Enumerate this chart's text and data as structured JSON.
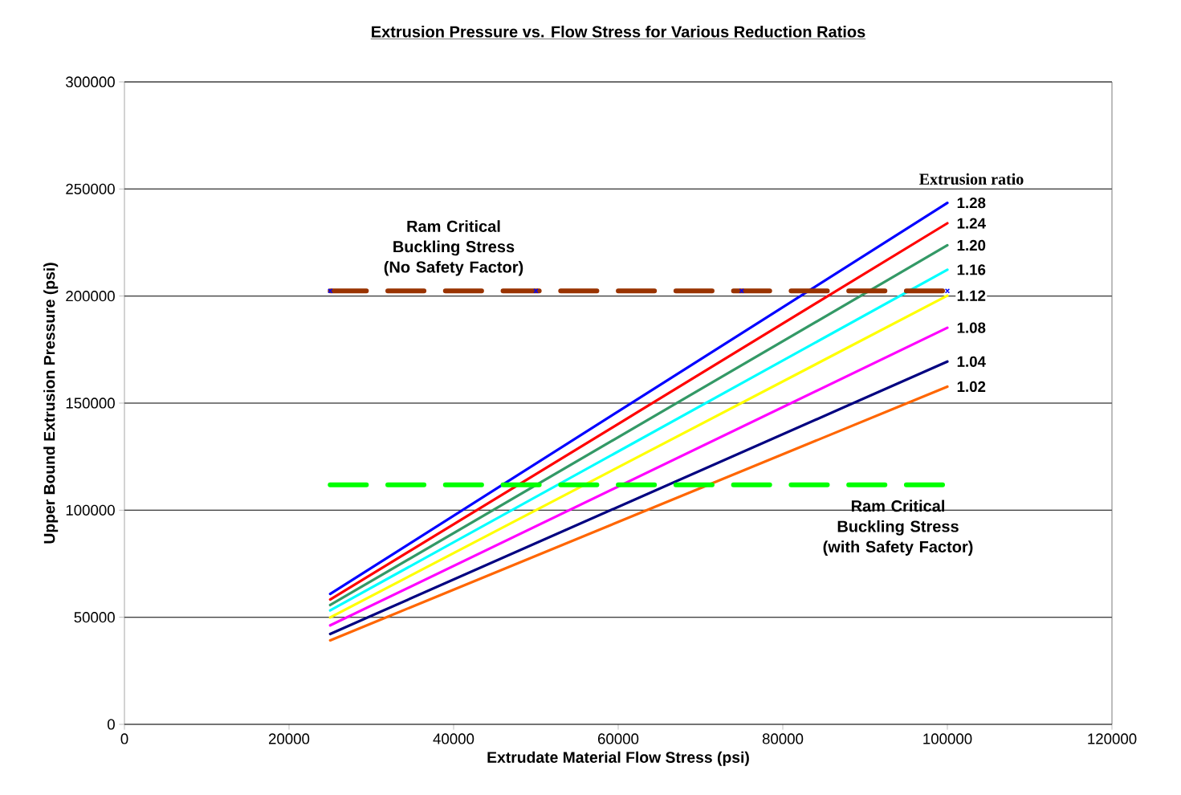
{
  "chart_data": {
    "type": "line",
    "title": "Extrusion Pressure vs. Flow Stress for Various Reduction Ratios",
    "xlabel": "Extrudate Material Flow Stress (psi)",
    "ylabel": "Upper Bound Extrusion Pressure (psi)",
    "legend_title": "Extrusion ratio",
    "xlim": [
      0,
      120000
    ],
    "xticks": [
      0,
      20000,
      40000,
      60000,
      80000,
      100000,
      120000
    ],
    "ylim": [
      0,
      300000
    ],
    "yticks": [
      0,
      50000,
      100000,
      150000,
      200000,
      250000,
      300000
    ],
    "grid": "y",
    "marker": "none",
    "line_style": "solid",
    "series": [
      {
        "name": "1.28",
        "color": "#0000ff",
        "x": [
          25000,
          100000
        ],
        "values": [
          60900,
          243500
        ]
      },
      {
        "name": "1.24",
        "color": "#ff0000",
        "x": [
          25000,
          100000
        ],
        "values": [
          58300,
          234000
        ]
      },
      {
        "name": "1.20",
        "color": "#339966",
        "x": [
          25000,
          100000
        ],
        "values": [
          55700,
          223700
        ]
      },
      {
        "name": "1.16",
        "color": "#00ffff",
        "x": [
          25000,
          100000
        ],
        "values": [
          53200,
          212300
        ]
      },
      {
        "name": "1.12",
        "color": "#ffff00",
        "x": [
          25000,
          100000
        ],
        "values": [
          49900,
          200200
        ]
      },
      {
        "name": "1.08",
        "color": "#ff00ff",
        "x": [
          25000,
          100000
        ],
        "values": [
          46200,
          185200
        ]
      },
      {
        "name": "1.04",
        "color": "#000080",
        "x": [
          25000,
          100000
        ],
        "values": [
          42200,
          169400
        ]
      },
      {
        "name": "1.02",
        "color": "#ff6600",
        "x": [
          25000,
          100000
        ],
        "values": [
          39200,
          157700
        ]
      },
      {
        "color": "#993300",
        "x": [
          25000,
          50000,
          75000,
          100000
        ],
        "values": [
          202400,
          202400,
          202400,
          202400
        ],
        "line_style": "dashed",
        "marker": "cross"
      },
      {
        "color": "#00ff00",
        "x": [
          25000,
          100000
        ],
        "values": [
          111800,
          111800
        ],
        "line_style": "dashed"
      }
    ],
    "annotations": [
      {
        "text": "Ram Critical Buckling Stress (No Safety Factor)",
        "x": 40000,
        "y": 202400
      },
      {
        "text": "Ram Critical Buckling Stress (with Safety Factor)",
        "x": 94000,
        "y": 111800
      }
    ]
  }
}
